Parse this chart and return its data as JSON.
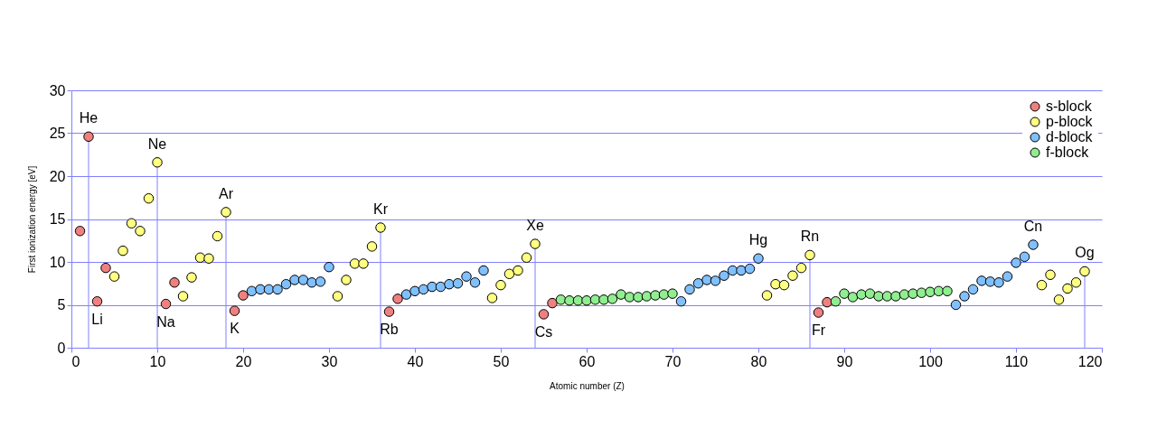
{
  "chart_data": {
    "type": "scatter",
    "xlabel": "Atomic number (Z)",
    "ylabel": "First ionization energy [eV]",
    "xlim": [
      0,
      120
    ],
    "xticks": [
      0,
      10,
      20,
      30,
      40,
      50,
      60,
      70,
      80,
      90,
      100,
      110,
      120
    ],
    "ylim": [
      0,
      30
    ],
    "yticks": [
      0,
      5,
      10,
      15,
      20,
      25,
      30
    ],
    "grid": "y",
    "legend": "top right",
    "marker": "circle",
    "series": [
      {
        "name": "s-block",
        "color": "#f08080",
        "x": [
          1,
          2,
          3,
          4,
          11,
          12,
          19,
          20,
          37,
          38,
          55,
          56,
          87,
          88
        ],
        "values": [
          13.6,
          24.6,
          5.4,
          9.3,
          5.1,
          7.6,
          4.3,
          6.1,
          4.2,
          5.7,
          3.9,
          5.2,
          4.1,
          5.3
        ]
      },
      {
        "name": "p-block",
        "color": "#ffff80",
        "x": [
          5,
          6,
          7,
          8,
          9,
          10,
          13,
          14,
          15,
          16,
          17,
          18,
          31,
          32,
          33,
          34,
          35,
          36,
          49,
          50,
          51,
          52,
          53,
          54,
          81,
          82,
          83,
          84,
          85,
          86,
          113,
          114,
          115,
          116,
          117,
          118
        ],
        "values": [
          8.3,
          11.3,
          14.5,
          13.6,
          17.4,
          21.6,
          6.0,
          8.2,
          10.5,
          10.4,
          13.0,
          15.8,
          6.0,
          7.9,
          9.8,
          9.8,
          11.8,
          14.0,
          5.8,
          7.3,
          8.6,
          9.0,
          10.5,
          12.1,
          6.1,
          7.4,
          7.3,
          8.4,
          9.3,
          10.8,
          7.3,
          8.5,
          5.6,
          6.9,
          7.6,
          8.9
        ]
      },
      {
        "name": "d-block",
        "color": "#80c0ff",
        "x": [
          21,
          22,
          23,
          24,
          25,
          26,
          27,
          28,
          29,
          30,
          39,
          40,
          41,
          42,
          43,
          44,
          45,
          46,
          47,
          48,
          71,
          72,
          73,
          74,
          75,
          76,
          77,
          78,
          79,
          80,
          103,
          104,
          105,
          106,
          107,
          108,
          109,
          110,
          111,
          112
        ],
        "values": [
          6.6,
          6.8,
          6.8,
          6.8,
          7.4,
          7.9,
          7.9,
          7.6,
          7.7,
          9.4,
          6.2,
          6.6,
          6.8,
          7.1,
          7.1,
          7.4,
          7.5,
          8.3,
          7.6,
          9.0,
          5.4,
          6.8,
          7.5,
          7.9,
          7.8,
          8.4,
          9.0,
          9.0,
          9.2,
          10.4,
          5.0,
          6.0,
          6.8,
          7.8,
          7.7,
          7.6,
          8.3,
          9.9,
          10.6,
          12.0
        ]
      },
      {
        "name": "f-block",
        "color": "#90ee90",
        "x": [
          57,
          58,
          59,
          60,
          61,
          62,
          63,
          64,
          65,
          66,
          67,
          68,
          69,
          70,
          89,
          90,
          91,
          92,
          93,
          94,
          95,
          96,
          97,
          98,
          99,
          100,
          101,
          102
        ],
        "values": [
          5.6,
          5.5,
          5.5,
          5.5,
          5.6,
          5.6,
          5.7,
          6.2,
          5.9,
          5.9,
          6.0,
          6.1,
          6.2,
          6.3,
          5.4,
          6.3,
          5.9,
          6.2,
          6.3,
          6.0,
          6.0,
          6.0,
          6.2,
          6.3,
          6.4,
          6.5,
          6.6,
          6.6
        ]
      }
    ],
    "ref_lines": [
      {
        "axis": "x",
        "value": 2,
        "color": "#8080ff"
      },
      {
        "axis": "x",
        "value": 10,
        "color": "#8080ff"
      },
      {
        "axis": "x",
        "value": 18,
        "color": "#8080ff"
      },
      {
        "axis": "x",
        "value": 36,
        "color": "#8080ff"
      },
      {
        "axis": "x",
        "value": 54,
        "color": "#8080ff"
      },
      {
        "axis": "x",
        "value": 86,
        "color": "#8080ff"
      },
      {
        "axis": "x",
        "value": 118,
        "color": "#8080ff"
      }
    ],
    "annotations": [
      {
        "text": "He",
        "x": 2,
        "y": 24.6
      },
      {
        "text": "Li",
        "x": 3,
        "y": 5.4
      },
      {
        "text": "Ne",
        "x": 10,
        "y": 21.6
      },
      {
        "text": "Na",
        "x": 11,
        "y": 5.1
      },
      {
        "text": "Ar",
        "x": 18,
        "y": 15.8
      },
      {
        "text": "K",
        "x": 19,
        "y": 4.3
      },
      {
        "text": "Kr",
        "x": 36,
        "y": 14.0
      },
      {
        "text": "Rb",
        "x": 37,
        "y": 4.2
      },
      {
        "text": "Xe",
        "x": 54,
        "y": 12.1
      },
      {
        "text": "Cs",
        "x": 55,
        "y": 3.9
      },
      {
        "text": "Hg",
        "x": 80,
        "y": 10.4
      },
      {
        "text": "Rn",
        "x": 86,
        "y": 10.8
      },
      {
        "text": "Fr",
        "x": 87,
        "y": 4.1
      },
      {
        "text": "Cn",
        "x": 112,
        "y": 12.0
      },
      {
        "text": "Og",
        "x": 118,
        "y": 8.9
      }
    ]
  }
}
